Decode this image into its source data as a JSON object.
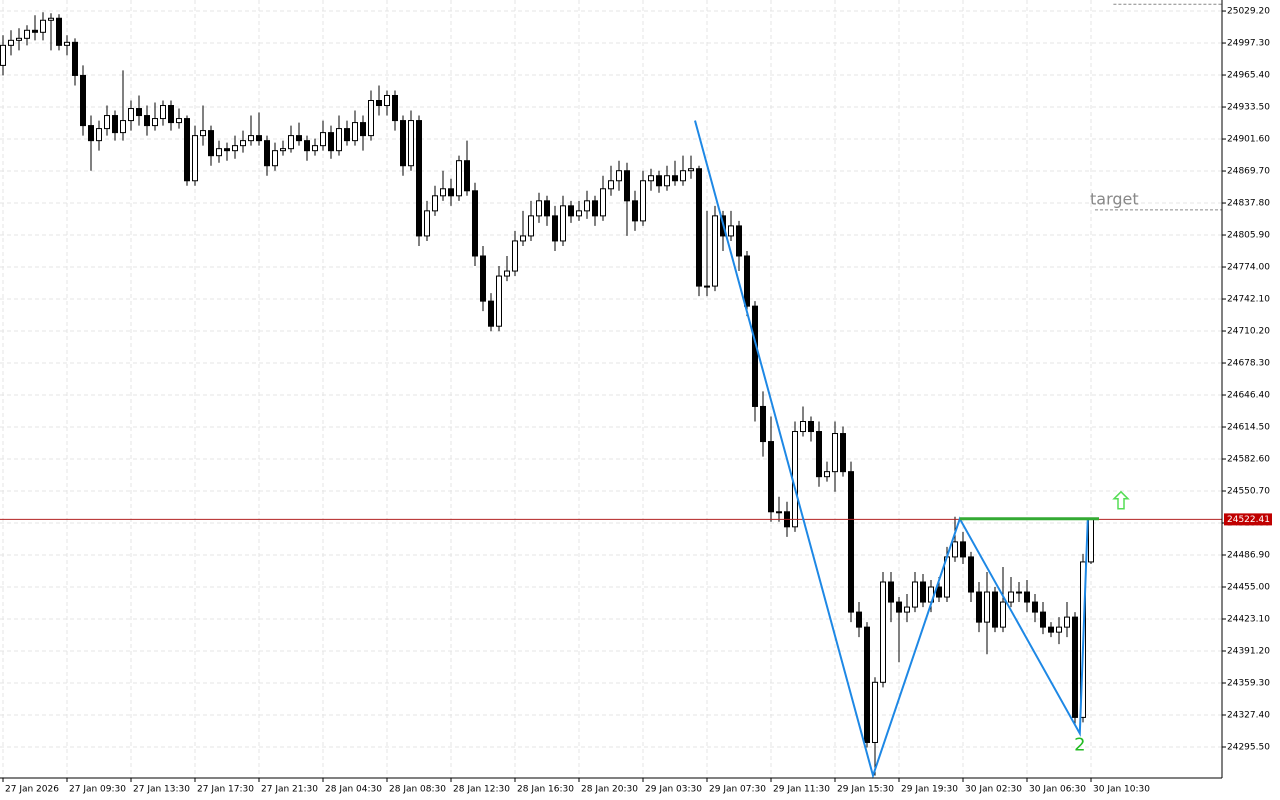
{
  "chart_data": {
    "type": "candlestick",
    "xlim": [
      -0.375,
      152.375
    ],
    "ylim": [
      24264.6,
      25040.2
    ],
    "grid": true,
    "up_color": "#ffffff",
    "down_color": "#000000",
    "xticks": [
      {
        "value": 0,
        "label": "27 Jan 2026"
      },
      {
        "value": 8,
        "label": "27 Jan 09:30"
      },
      {
        "value": 16,
        "label": "27 Jan 13:30"
      },
      {
        "value": 24,
        "label": "27 Jan 17:30"
      },
      {
        "value": 32,
        "label": "27 Jan 21:30"
      },
      {
        "value": 40,
        "label": "28 Jan 04:30"
      },
      {
        "value": 48,
        "label": "28 Jan 08:30"
      },
      {
        "value": 56,
        "label": "28 Jan 12:30"
      },
      {
        "value": 64,
        "label": "28 Jan 16:30"
      },
      {
        "value": 72,
        "label": "28 Jan 20:30"
      },
      {
        "value": 80,
        "label": "29 Jan 03:30"
      },
      {
        "value": 88,
        "label": "29 Jan 07:30"
      },
      {
        "value": 96,
        "label": "29 Jan 11:30"
      },
      {
        "value": 104,
        "label": "29 Jan 15:30"
      },
      {
        "value": 112,
        "label": "29 Jan 19:30"
      },
      {
        "value": 120,
        "label": "30 Jan 02:30"
      },
      {
        "value": 128,
        "label": "30 Jan 06:30"
      },
      {
        "value": 136,
        "label": "30 Jan 10:30"
      }
    ],
    "yticks": [
      {
        "value": 25029.2,
        "label": "25029.20"
      },
      {
        "value": 24997.3,
        "label": "24997.30"
      },
      {
        "value": 24965.4,
        "label": "24965.40"
      },
      {
        "value": 24933.5,
        "label": "24933.50"
      },
      {
        "value": 24901.6,
        "label": "24901.60"
      },
      {
        "value": 24869.7,
        "label": "24869.70"
      },
      {
        "value": 24837.8,
        "label": "24837.80"
      },
      {
        "value": 24805.9,
        "label": "24805.90"
      },
      {
        "value": 24774,
        "label": "24774.00"
      },
      {
        "value": 24742.1,
        "label": "24742.10"
      },
      {
        "value": 24710.2,
        "label": "24710.20"
      },
      {
        "value": 24678.3,
        "label": "24678.30"
      },
      {
        "value": 24646.4,
        "label": "24646.40"
      },
      {
        "value": 24614.5,
        "label": "24614.50"
      },
      {
        "value": 24582.6,
        "label": "24582.60"
      },
      {
        "value": 24550.7,
        "label": "24550.70"
      },
      {
        "value": 24518.8,
        "label": "24518.80"
      },
      {
        "value": 24486.9,
        "label": "24486.90"
      },
      {
        "value": 24455,
        "label": "24455.00"
      },
      {
        "value": 24423.1,
        "label": "24423.10"
      },
      {
        "value": 24391.2,
        "label": "24391.20"
      },
      {
        "value": 24359.3,
        "label": "24359.30"
      },
      {
        "value": 24327.4,
        "label": "24327.40"
      },
      {
        "value": 24295.5,
        "label": "24295.50"
      }
    ],
    "ohlc": [
      [
        24975,
        25005,
        24965,
        24995
      ],
      [
        24995,
        25010,
        24985,
        25000
      ],
      [
        25000,
        25012,
        24990,
        25002
      ],
      [
        25002,
        25015,
        24995,
        25010
      ],
      [
        25010,
        25025,
        25000,
        25008
      ],
      [
        25008,
        25028,
        25000,
        25020
      ],
      [
        25020,
        25027,
        24990,
        25022
      ],
      [
        25022,
        25026,
        24990,
        24995
      ],
      [
        24995,
        25005,
        24985,
        24998
      ],
      [
        24998,
        25002,
        24955,
        24965
      ],
      [
        24965,
        24975,
        24905,
        24915
      ],
      [
        24915,
        24925,
        24870,
        24900
      ],
      [
        24900,
        24920,
        24890,
        24912
      ],
      [
        24912,
        24935,
        24905,
        24925
      ],
      [
        24925,
        24930,
        24900,
        24908
      ],
      [
        24908,
        24970,
        24900,
        24920
      ],
      [
        24920,
        24940,
        24910,
        24932
      ],
      [
        24932,
        24945,
        24915,
        24925
      ],
      [
        24925,
        24935,
        24905,
        24915
      ],
      [
        24915,
        24938,
        24910,
        24922
      ],
      [
        24922,
        24940,
        24915,
        24935
      ],
      [
        24935,
        24940,
        24910,
        24918
      ],
      [
        24918,
        24932,
        24912,
        24922
      ],
      [
        24922,
        24925,
        24855,
        24860
      ],
      [
        24860,
        24915,
        24855,
        24905
      ],
      [
        24905,
        24935,
        24895,
        24910
      ],
      [
        24910,
        24915,
        24875,
        24885
      ],
      [
        24885,
        24900,
        24878,
        24892
      ],
      [
        24892,
        24898,
        24880,
        24890
      ],
      [
        24890,
        24905,
        24882,
        24895
      ],
      [
        24895,
        24910,
        24888,
        24900
      ],
      [
        24900,
        24925,
        24895,
        24905
      ],
      [
        24905,
        24928,
        24895,
        24900
      ],
      [
        24900,
        24905,
        24865,
        24875
      ],
      [
        24875,
        24898,
        24870,
        24890
      ],
      [
        24890,
        24900,
        24885,
        24892
      ],
      [
        24892,
        24915,
        24888,
        24905
      ],
      [
        24905,
        24918,
        24895,
        24900
      ],
      [
        24900,
        24905,
        24880,
        24890
      ],
      [
        24890,
        24902,
        24885,
        24895
      ],
      [
        24895,
        24920,
        24890,
        24908
      ],
      [
        24908,
        24915,
        24882,
        24890
      ],
      [
        24890,
        24925,
        24885,
        24912
      ],
      [
        24912,
        24920,
        24895,
        24900
      ],
      [
        24900,
        24930,
        24895,
        24918
      ],
      [
        24918,
        24925,
        24890,
        24905
      ],
      [
        24905,
        24950,
        24900,
        24940
      ],
      [
        24940,
        24955,
        24925,
        24935
      ],
      [
        24935,
        24950,
        24925,
        24945
      ],
      [
        24945,
        24950,
        24910,
        24920
      ],
      [
        24920,
        24925,
        24865,
        24875
      ],
      [
        24875,
        24930,
        24870,
        24920
      ],
      [
        24920,
        24925,
        24795,
        24805
      ],
      [
        24805,
        24840,
        24800,
        24830
      ],
      [
        24830,
        24855,
        24825,
        24845
      ],
      [
        24845,
        24870,
        24840,
        24852
      ],
      [
        24852,
        24862,
        24835,
        24845
      ],
      [
        24845,
        24885,
        24840,
        24880
      ],
      [
        24880,
        24900,
        24845,
        24850
      ],
      [
        24850,
        24858,
        24775,
        24785
      ],
      [
        24785,
        24795,
        24730,
        24740
      ],
      [
        24740,
        24748,
        24710,
        24715
      ],
      [
        24715,
        24775,
        24710,
        24765
      ],
      [
        24765,
        24785,
        24760,
        24770
      ],
      [
        24770,
        24810,
        24765,
        24800
      ],
      [
        24800,
        24830,
        24795,
        24805
      ],
      [
        24805,
        24840,
        24800,
        24825
      ],
      [
        24825,
        24848,
        24818,
        24840
      ],
      [
        24840,
        24845,
        24815,
        24825
      ],
      [
        24825,
        24835,
        24790,
        24800
      ],
      [
        24800,
        24845,
        24795,
        24835
      ],
      [
        24835,
        24840,
        24818,
        24825
      ],
      [
        24825,
        24840,
        24820,
        24830
      ],
      [
        24830,
        24850,
        24822,
        24840
      ],
      [
        24840,
        24845,
        24815,
        24825
      ],
      [
        24825,
        24865,
        24820,
        24852
      ],
      [
        24852,
        24875,
        24845,
        24860
      ],
      [
        24860,
        24880,
        24850,
        24870
      ],
      [
        24870,
        24878,
        24805,
        24840
      ],
      [
        24840,
        24850,
        24810,
        24820
      ],
      [
        24820,
        24870,
        24815,
        24860
      ],
      [
        24860,
        24872,
        24850,
        24865
      ],
      [
        24865,
        24870,
        24848,
        24855
      ],
      [
        24855,
        24875,
        24850,
        24865
      ],
      [
        24865,
        24880,
        24855,
        24860
      ],
      [
        24860,
        24885,
        24855,
        24870
      ],
      [
        24870,
        24885,
        24862,
        24872
      ],
      [
        24872,
        24875,
        24745,
        24755
      ],
      [
        24755,
        24830,
        24745,
        24755
      ],
      [
        24755,
        24835,
        24750,
        24825
      ],
      [
        24825,
        24830,
        24790,
        24805
      ],
      [
        24805,
        24830,
        24800,
        24815
      ],
      [
        24815,
        24820,
        24770,
        24785
      ],
      [
        24785,
        24790,
        24725,
        24735
      ],
      [
        24735,
        24740,
        24620,
        24635
      ],
      [
        24635,
        24650,
        24585,
        24600
      ],
      [
        24600,
        24625,
        24520,
        24530
      ],
      [
        24530,
        24545,
        24520,
        24530
      ],
      [
        24530,
        24540,
        24505,
        24515
      ],
      [
        24515,
        24620,
        24510,
        24610
      ],
      [
        24610,
        24635,
        24605,
        24620
      ],
      [
        24620,
        24625,
        24600,
        24610
      ],
      [
        24610,
        24620,
        24555,
        24565
      ],
      [
        24565,
        24580,
        24560,
        24570
      ],
      [
        24570,
        24620,
        24550,
        24608
      ],
      [
        24608,
        24615,
        24565,
        24570
      ],
      [
        24570,
        24580,
        24420,
        24430
      ],
      [
        24430,
        24440,
        24405,
        24415
      ],
      [
        24415,
        24420,
        24295,
        24300
      ],
      [
        24300,
        24365,
        24267,
        24360
      ],
      [
        24360,
        24470,
        24355,
        24460
      ],
      [
        24460,
        24470,
        24420,
        24440
      ],
      [
        24440,
        24445,
        24380,
        24430
      ],
      [
        24430,
        24448,
        24420,
        24435
      ],
      [
        24435,
        24470,
        24430,
        24460
      ],
      [
        24460,
        24468,
        24435,
        24440
      ],
      [
        24440,
        24462,
        24430,
        24455
      ],
      [
        24455,
        24465,
        24440,
        24445
      ],
      [
        24445,
        24495,
        24440,
        24485
      ],
      [
        24485,
        24525,
        24480,
        24500
      ],
      [
        24500,
        24510,
        24478,
        24485
      ],
      [
        24485,
        24490,
        24440,
        24450
      ],
      [
        24450,
        24460,
        24410,
        24420
      ],
      [
        24420,
        24470,
        24388,
        24450
      ],
      [
        24450,
        24455,
        24410,
        24415
      ],
      [
        24415,
        24475,
        24410,
        24440
      ],
      [
        24440,
        24465,
        24435,
        24450
      ],
      [
        24450,
        24460,
        24440,
        24450
      ],
      [
        24450,
        24462,
        24430,
        24440
      ],
      [
        24440,
        24448,
        24420,
        24430
      ],
      [
        24430,
        24440,
        24408,
        24415
      ],
      [
        24415,
        24420,
        24405,
        24410
      ],
      [
        24410,
        24425,
        24398,
        24415
      ],
      [
        24415,
        24440,
        24405,
        24425
      ],
      [
        24425,
        24430,
        24318,
        24325
      ],
      [
        24325,
        24488,
        24320,
        24480
      ],
      [
        24480,
        24524,
        24478,
        24522.41
      ]
    ],
    "last_price": 24522.41,
    "pattern": {
      "color": "#1e88e5",
      "x": [
        86.5,
        108.75,
        119.6,
        134.6,
        135.6
      ],
      "y": [
        24920,
        24267,
        24523,
        24309,
        24523
      ],
      "label": "2",
      "label_color": "#22bb22"
    },
    "level": {
      "color": "#33aa33",
      "x": [
        119.6,
        137
      ],
      "value": 24523
    },
    "target": {
      "label": "target",
      "value": 24831,
      "x": [
        136.5,
        152.375
      ]
    },
    "top_line": {
      "value": 25036,
      "x": [
        138.8,
        152.375
      ]
    }
  }
}
